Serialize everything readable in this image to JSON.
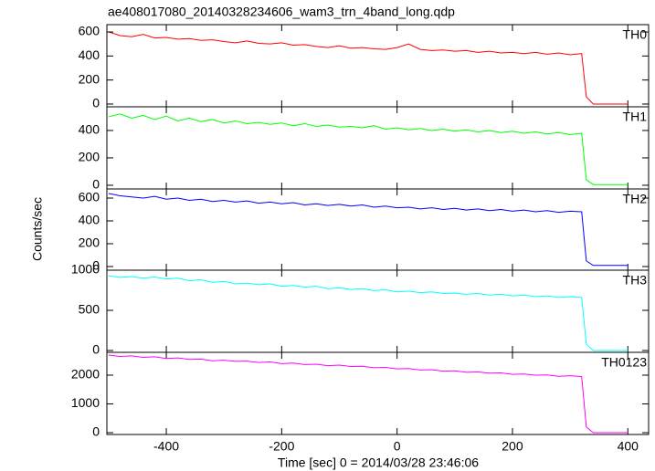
{
  "chart_data": {
    "type": "line",
    "title": "ae408017080_20140328234606_wam3_trn_4band_long.qdp",
    "xlabel": "Time [sec] 0 = 2014/03/28 23:46:06",
    "ylabel": "Counts/sec",
    "xlim": [
      -503,
      436
    ],
    "xticks": [
      -400,
      -200,
      0,
      200,
      400
    ],
    "x": [
      -500,
      -480,
      -460,
      -440,
      -420,
      -400,
      -380,
      -360,
      -340,
      -320,
      -300,
      -280,
      -260,
      -240,
      -220,
      -200,
      -180,
      -160,
      -140,
      -120,
      -100,
      -80,
      -60,
      -40,
      -20,
      0,
      20,
      40,
      60,
      80,
      100,
      120,
      140,
      160,
      180,
      200,
      220,
      240,
      260,
      280,
      300,
      320,
      328,
      340,
      400
    ],
    "series": [
      {
        "name": "TH0",
        "color": "#ff0000",
        "ylim": [
          -23,
          661
        ],
        "yticks": [
          0,
          200,
          400,
          600
        ],
        "values": [
          600,
          570,
          560,
          580,
          550,
          555,
          540,
          545,
          530,
          535,
          520,
          510,
          525,
          505,
          500,
          510,
          490,
          495,
          480,
          470,
          485,
          465,
          470,
          460,
          455,
          470,
          500,
          455,
          445,
          450,
          440,
          445,
          430,
          440,
          425,
          430,
          420,
          430,
          415,
          425,
          410,
          420,
          60,
          0,
          0
        ]
      },
      {
        "name": "TH1",
        "color": "#00ff00",
        "ylim": [
          -27,
          573
        ],
        "yticks": [
          0,
          200,
          400
        ],
        "values": [
          500,
          520,
          490,
          510,
          480,
          505,
          470,
          490,
          465,
          480,
          455,
          470,
          450,
          460,
          445,
          455,
          435,
          450,
          430,
          440,
          425,
          430,
          420,
          435,
          410,
          420,
          405,
          415,
          400,
          410,
          395,
          405,
          390,
          400,
          385,
          395,
          380,
          390,
          375,
          385,
          370,
          380,
          40,
          5,
          5
        ]
      },
      {
        "name": "TH2",
        "color": "#0000ff",
        "ylim": [
          -32,
          680
        ],
        "yticks": [
          0,
          200,
          400,
          600
        ],
        "values": [
          640,
          620,
          610,
          600,
          615,
          590,
          600,
          580,
          590,
          570,
          580,
          565,
          575,
          555,
          565,
          550,
          560,
          540,
          550,
          535,
          545,
          530,
          540,
          520,
          530,
          515,
          520,
          505,
          515,
          500,
          510,
          495,
          505,
          490,
          500,
          485,
          495,
          480,
          490,
          475,
          485,
          480,
          50,
          10,
          10
        ]
      },
      {
        "name": "TH3",
        "color": "#00ffff",
        "ylim": [
          -23,
          1000
        ],
        "yticks": [
          0,
          500,
          1000
        ],
        "values": [
          930,
          910,
          920,
          900,
          915,
          890,
          900,
          870,
          880,
          850,
          860,
          830,
          840,
          820,
          830,
          800,
          810,
          790,
          800,
          770,
          780,
          760,
          770,
          745,
          755,
          730,
          740,
          720,
          730,
          710,
          715,
          700,
          710,
          690,
          700,
          680,
          690,
          670,
          680,
          660,
          670,
          660,
          80,
          0,
          0
        ]
      },
      {
        "name": "TH0123",
        "color": "#ff00ff",
        "ylim": [
          -63,
          2794
        ],
        "yticks": [
          0,
          1000,
          2000
        ],
        "values": [
          2700,
          2650,
          2670,
          2620,
          2640,
          2580,
          2600,
          2550,
          2560,
          2500,
          2520,
          2480,
          2490,
          2440,
          2460,
          2400,
          2420,
          2370,
          2380,
          2330,
          2350,
          2300,
          2310,
          2260,
          2270,
          2220,
          2230,
          2180,
          2190,
          2140,
          2150,
          2100,
          2110,
          2070,
          2080,
          2030,
          2040,
          2000,
          2010,
          1960,
          1980,
          1950,
          200,
          0,
          0
        ]
      }
    ]
  }
}
